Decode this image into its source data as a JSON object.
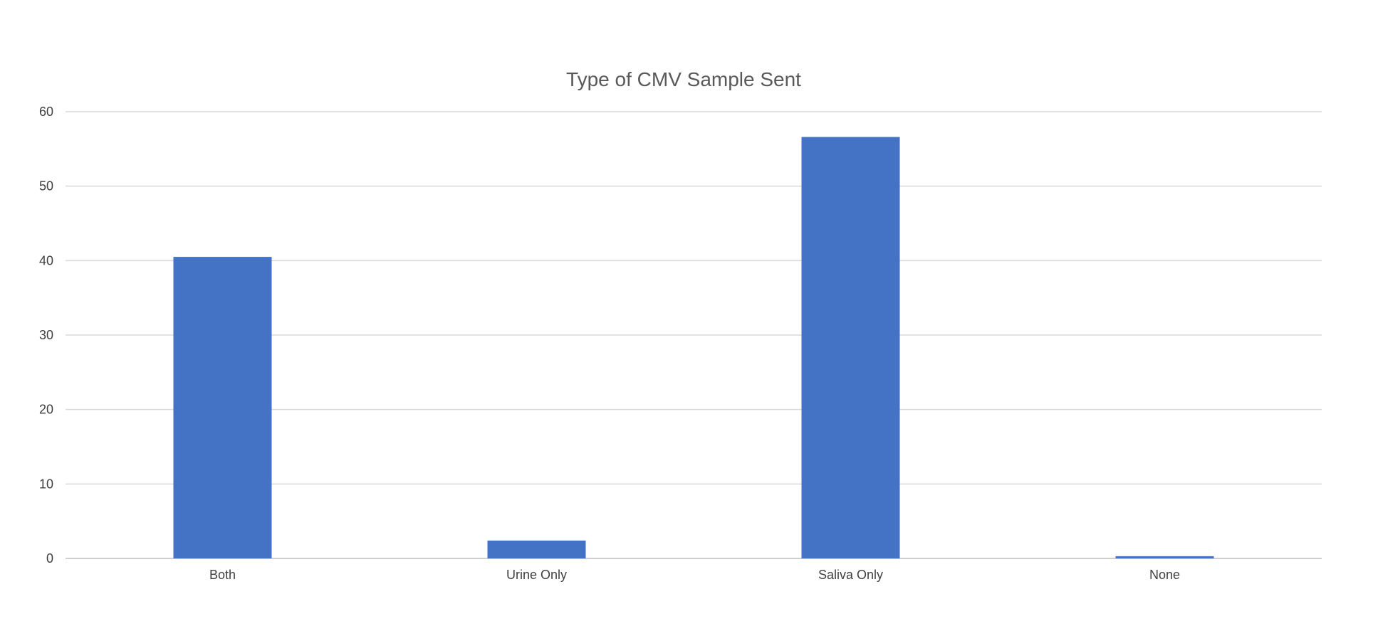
{
  "chart_data": {
    "type": "bar",
    "title": "Type of CMV Sample Sent",
    "xlabel": "",
    "ylabel": "",
    "categories": [
      "Both",
      "Urine Only",
      "Saliva Only",
      "None"
    ],
    "values": [
      40.5,
      2.4,
      56.6,
      0.3
    ],
    "ylim": [
      0,
      60
    ],
    "yticks": [
      0,
      10,
      20,
      30,
      40,
      50,
      60
    ],
    "grid": true,
    "legend": "none",
    "colors": {
      "bar": "#4472C4"
    }
  }
}
